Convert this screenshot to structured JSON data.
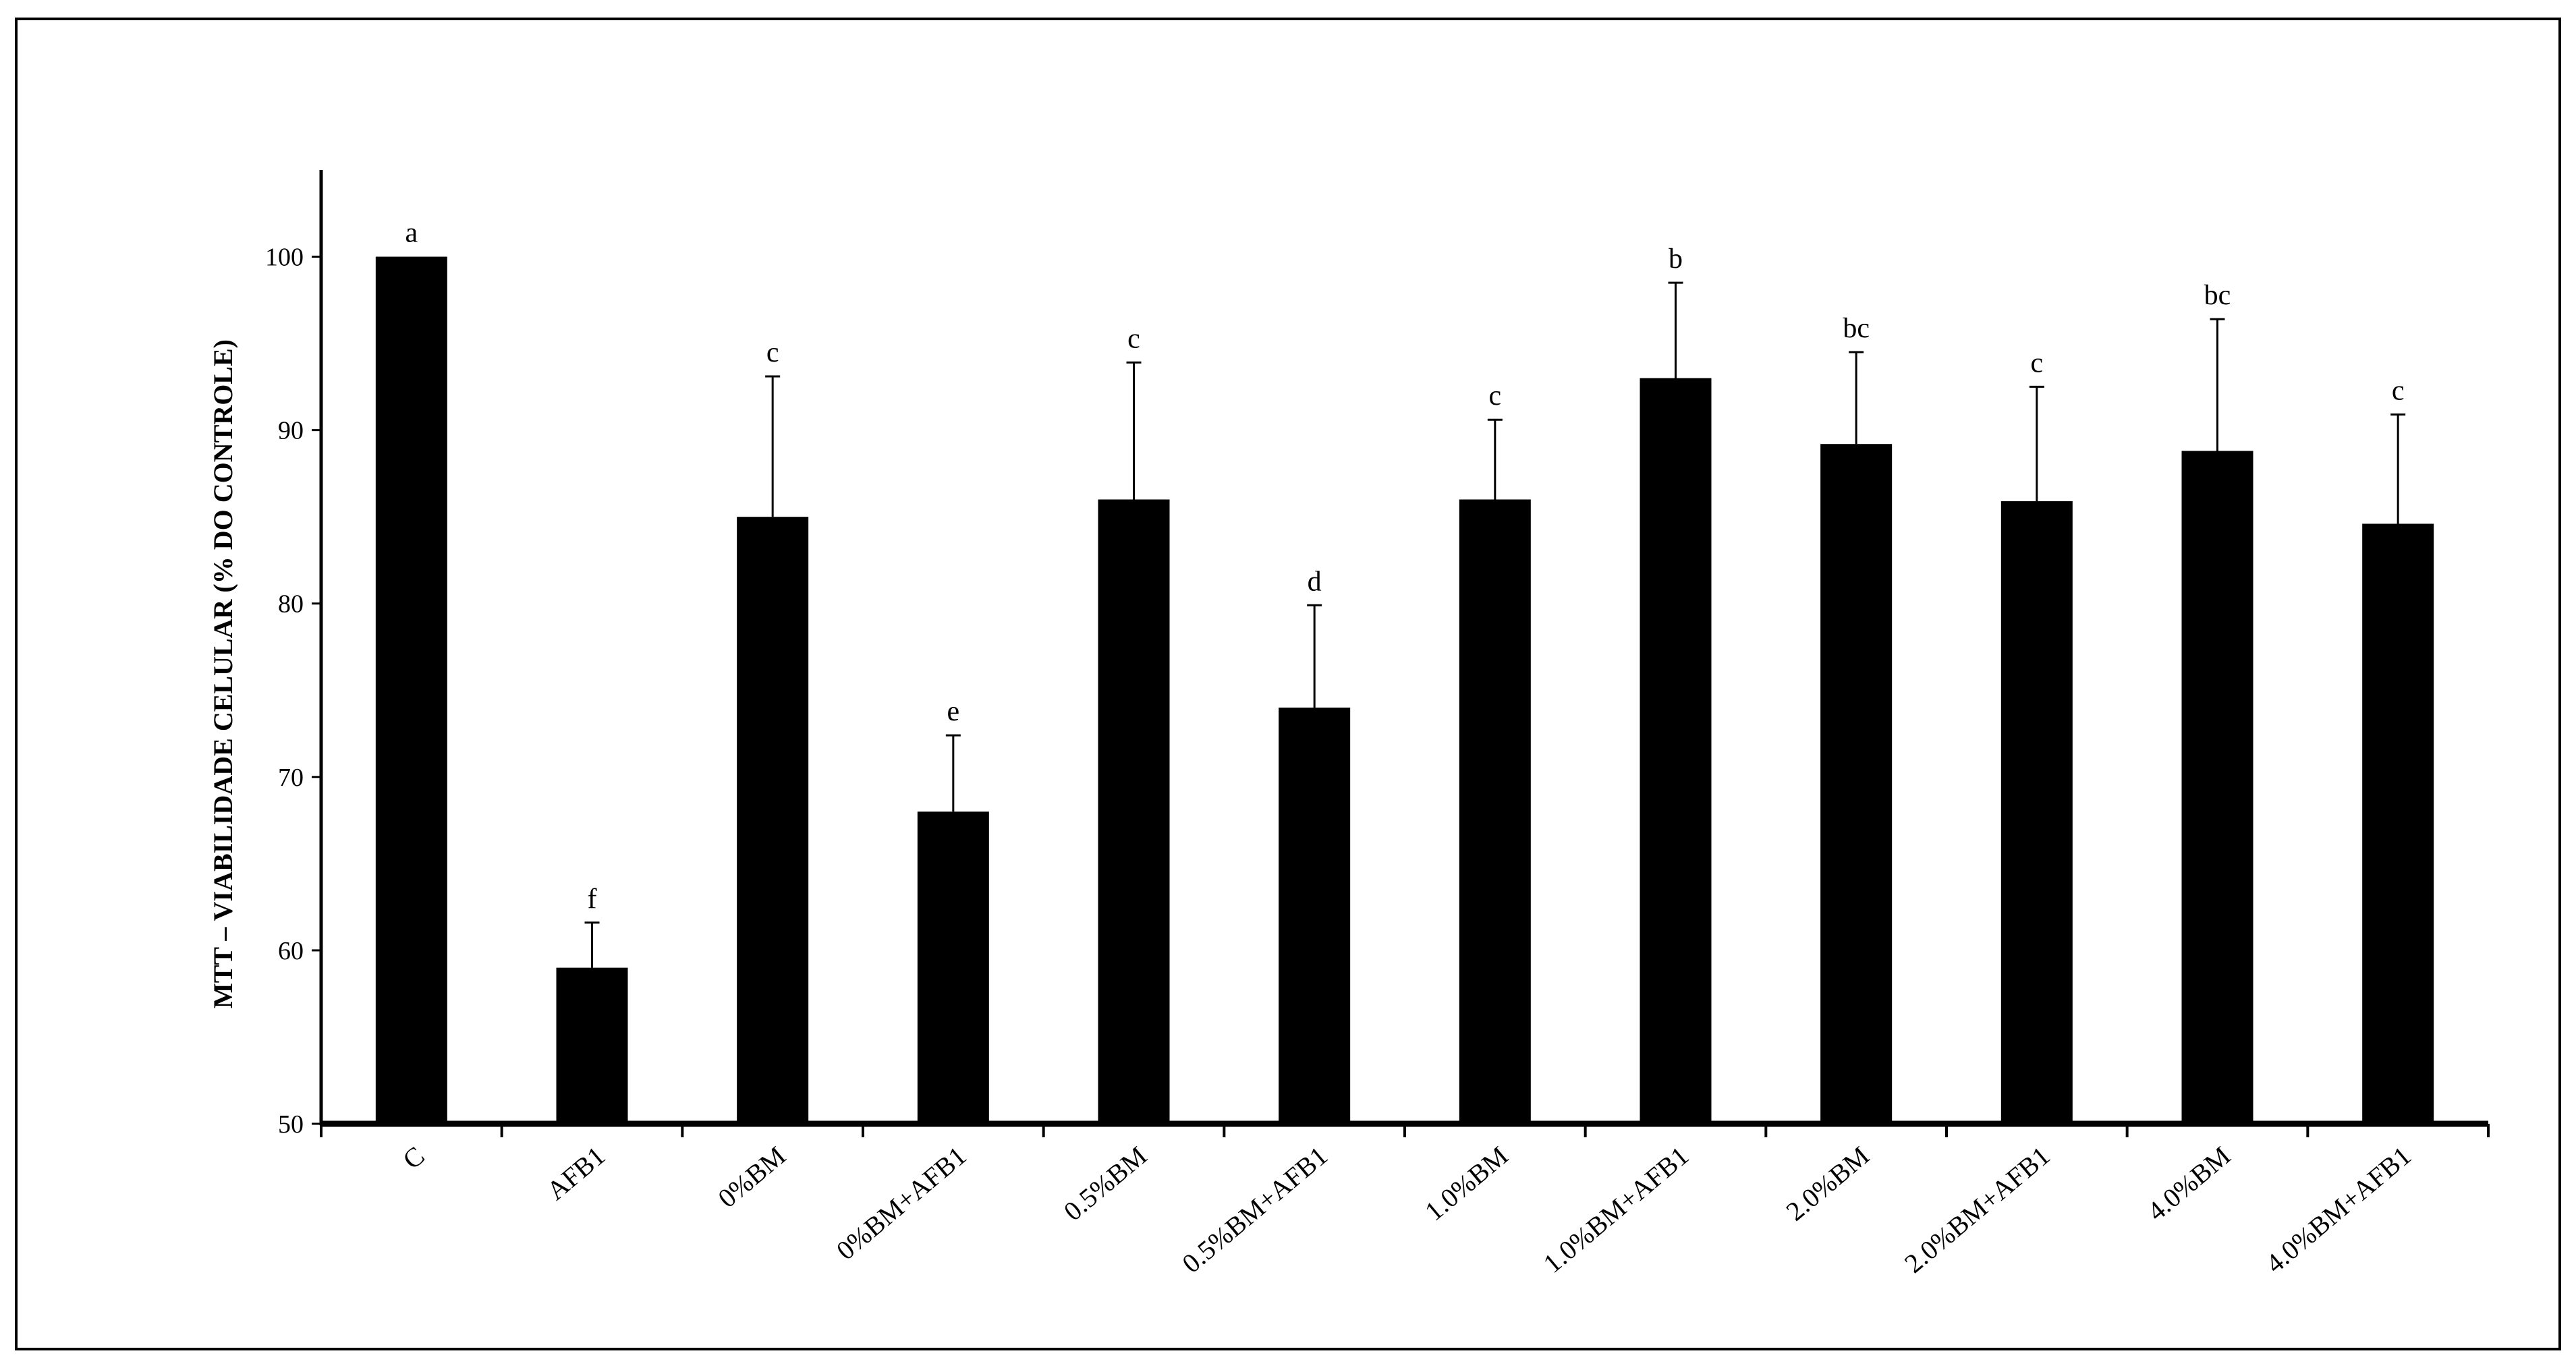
{
  "chart_data": {
    "type": "bar",
    "title": "",
    "xlabel": "",
    "ylabel": "MTT – VIABILIDADE  CELULAR  (% DO CONTROLE)",
    "ylim": [
      50,
      105
    ],
    "yticks": [
      50,
      60,
      70,
      80,
      90,
      100
    ],
    "grid": false,
    "legend": "none",
    "bar_color": "#000000",
    "categories": [
      "C",
      "AFB1",
      "0%BM",
      "0%BM+AFB1",
      "0.5%BM",
      "0.5%BM+AFB1",
      "1.0%BM",
      "1.0%BM+AFB1",
      "2.0%BM",
      "2.0%BM+AFB1",
      "4.0%BM",
      "4.0%BM+AFB1"
    ],
    "values": [
      100,
      59,
      85,
      68,
      86,
      74,
      86,
      93,
      89.2,
      85.9,
      88.8,
      84.6
    ],
    "errors": [
      0,
      2.6,
      8.1,
      4.4,
      7.9,
      5.9,
      4.6,
      5.5,
      5.3,
      6.6,
      7.6,
      6.3
    ],
    "significance": [
      "a",
      "f",
      "c",
      "e",
      "c",
      "d",
      "c",
      "b",
      "bc",
      "c",
      "bc",
      "c"
    ]
  }
}
